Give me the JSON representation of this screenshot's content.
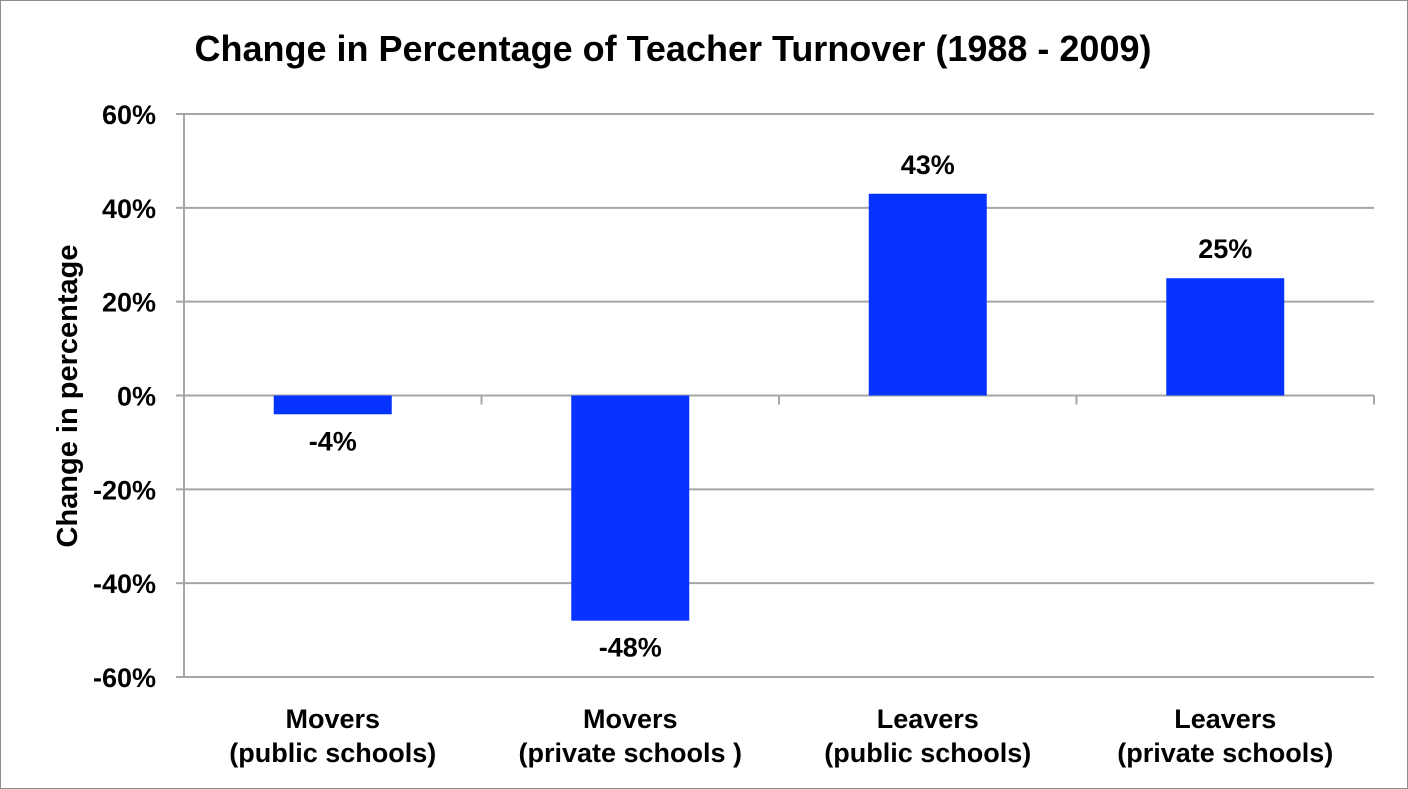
{
  "chart_data": {
    "type": "bar",
    "title": "Change in Percentage of Teacher Turnover (1988 - 2009)",
    "xlabel": "",
    "ylabel": "Change in percentage",
    "ylim": [
      -60,
      60
    ],
    "yticks": [
      60,
      40,
      20,
      0,
      -20,
      -40,
      -60
    ],
    "ytick_labels": [
      "60%",
      "40%",
      "20%",
      "0%",
      "-20%",
      "-40%",
      "-60%"
    ],
    "categories": [
      [
        "Movers",
        "(public schools)"
      ],
      [
        "Movers",
        "(private schools )"
      ],
      [
        "Leavers",
        "(public schools)"
      ],
      [
        "Leavers",
        "(private schools)"
      ]
    ],
    "values": [
      -4,
      -48,
      43,
      25
    ],
    "data_labels": [
      "-4%",
      "-48%",
      "43%",
      "25%"
    ],
    "bar_color": "#0633ff",
    "grid": true,
    "legend": "none"
  }
}
